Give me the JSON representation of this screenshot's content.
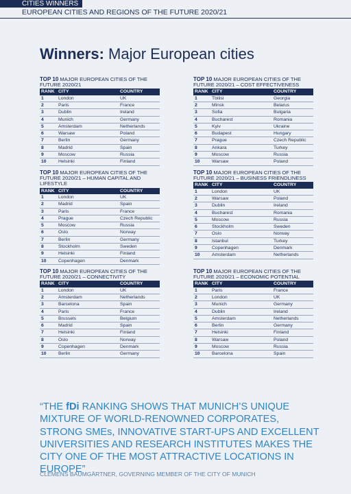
{
  "header": {
    "section": "CITIES WINNERS",
    "subtitle": "EUROPEAN CITIES AND REGIONS OF THE FUTURE 2020/21"
  },
  "title": {
    "bold": "Winners:",
    "rest": "Major European cities"
  },
  "tables": [
    {
      "lead": "TOP 10",
      "title": "MAJOR EUROPEAN CITIES OF THE FUTURE 2020/21",
      "columns": [
        "RANK",
        "CITY",
        "COUNTRY"
      ],
      "rows": [
        [
          1,
          "London",
          "UK"
        ],
        [
          2,
          "Paris",
          "France"
        ],
        [
          3,
          "Dublin",
          "Ireland"
        ],
        [
          4,
          "Munich",
          "Germany"
        ],
        [
          5,
          "Amsterdam",
          "Netherlands"
        ],
        [
          6,
          "Warsaw",
          "Poland"
        ],
        [
          7,
          "Berlin",
          "Germany"
        ],
        [
          8,
          "Madrid",
          "Spain"
        ],
        [
          9,
          "Moscow",
          "Russia"
        ],
        [
          10,
          "Helsinki",
          "Finland"
        ]
      ]
    },
    {
      "lead": "TOP 10",
      "title": "MAJOR EUROPEAN CITIES OF THE FUTURE 2020/21 – COST EFFECTIVENESS",
      "columns": [
        "RANK",
        "CITY",
        "COUNTRY"
      ],
      "rows": [
        [
          1,
          "Tbilisi",
          "Georgia"
        ],
        [
          2,
          "Minsk",
          "Belarus"
        ],
        [
          3,
          "Sofia",
          "Bulgaria"
        ],
        [
          4,
          "Bucharest",
          "Romania"
        ],
        [
          5,
          "Kyiv",
          "Ukraine"
        ],
        [
          6,
          "Budapest",
          "Hungary"
        ],
        [
          7,
          "Prague",
          "Czech Republic"
        ],
        [
          8,
          "Ankara",
          "Turkey"
        ],
        [
          9,
          "Moscow",
          "Russia"
        ],
        [
          10,
          "Warsaw",
          "Poland"
        ]
      ]
    },
    {
      "lead": "TOP 10",
      "title": "MAJOR EUROPEAN CITIES OF THE FUTURE 2020/21 – HUMAN CAPITAL AND LIFESTYLE",
      "columns": [
        "RANK",
        "CITY",
        "COUNTRY"
      ],
      "rows": [
        [
          1,
          "London",
          "UK"
        ],
        [
          2,
          "Madrid",
          "Spain"
        ],
        [
          3,
          "Paris",
          "France"
        ],
        [
          4,
          "Prague",
          "Czech Republic"
        ],
        [
          5,
          "Moscow",
          "Russia"
        ],
        [
          6,
          "Oslo",
          "Norway"
        ],
        [
          7,
          "Berlin",
          "Germany"
        ],
        [
          8,
          "Stockholm",
          "Sweden"
        ],
        [
          9,
          "Helsinki",
          "Finland"
        ],
        [
          10,
          "Copenhagen",
          "Denmark"
        ]
      ]
    },
    {
      "lead": "TOP 10",
      "title": "MAJOR EUROPEAN CITIES OF THE FUTURE 2020/21 – BUSINESS FRIENDLINESS",
      "columns": [
        "RANK",
        "CITY",
        "COUNTRY"
      ],
      "rows": [
        [
          1,
          "London",
          "UK"
        ],
        [
          2,
          "Warsaw",
          "Poland"
        ],
        [
          3,
          "Dublin",
          "Ireland"
        ],
        [
          4,
          "Bucharest",
          "Romania"
        ],
        [
          5,
          "Moscow",
          "Russia"
        ],
        [
          6,
          "Stockholm",
          "Sweden"
        ],
        [
          7,
          "Oslo",
          "Norway"
        ],
        [
          8,
          "Istanbul",
          "Turkey"
        ],
        [
          9,
          "Copenhagen",
          "Denmark"
        ],
        [
          10,
          "Amsterdam",
          "Netherlands"
        ]
      ]
    },
    {
      "lead": "TOP 10",
      "title": "MAJOR EUROPEAN CITIES OF THE FUTURE 2020/21 – CONNECTIVITY",
      "columns": [
        "RANK",
        "CITY",
        "COUNTRY"
      ],
      "rows": [
        [
          1,
          "London",
          "UK"
        ],
        [
          2,
          "Amsterdam",
          "Netherlands"
        ],
        [
          3,
          "Barcelona",
          "Spain"
        ],
        [
          4,
          "Paris",
          "France"
        ],
        [
          5,
          "Brussels",
          "Belgium"
        ],
        [
          6,
          "Madrid",
          "Spain"
        ],
        [
          7,
          "Helsinki",
          "Finland"
        ],
        [
          8,
          "Oslo",
          "Norway"
        ],
        [
          9,
          "Copenhagen",
          "Denmark"
        ],
        [
          10,
          "Berlin",
          "Germany"
        ]
      ]
    },
    {
      "lead": "TOP 10",
      "title": "MAJOR EUROPEAN CITIES OF THE FUTURE 2020/21 – ECONOMIC POTENTIAL",
      "columns": [
        "RANK",
        "CITY",
        "COUNTRY"
      ],
      "rows": [
        [
          1,
          "Paris",
          "France"
        ],
        [
          2,
          "London",
          "UK"
        ],
        [
          3,
          "Munich",
          "Germany"
        ],
        [
          4,
          "Dublin",
          "Ireland"
        ],
        [
          5,
          "Amsterdam",
          "Netherlands"
        ],
        [
          6,
          "Berlin",
          "Germany"
        ],
        [
          7,
          "Helsinki",
          "Finland"
        ],
        [
          8,
          "Warsaw",
          "Poland"
        ],
        [
          9,
          "Moscow",
          "Russia"
        ],
        [
          10,
          "Barcelona",
          "Spain"
        ]
      ]
    }
  ],
  "quote": {
    "start": "“THE",
    "brand": "fDi",
    "rest": "RANKING SHOWS THAT MUNICH’S UNIQUE MIXTURE OF WORLD-RENOWNED CORPORATES, STRONG SMEs, INNOVATIVE START-UPS AND EXCELLENT UNIVERSITIES AND RESEARCH INSTITUTES MAKES THE CITY ONE OF THE MOST ATTRACTIVE LOCATIONS IN EUROPE”",
    "attribution": "CLEMENS BAUMGÄRTNER, GOVERNING MEMBER OF THE CITY OF MUNICH"
  }
}
